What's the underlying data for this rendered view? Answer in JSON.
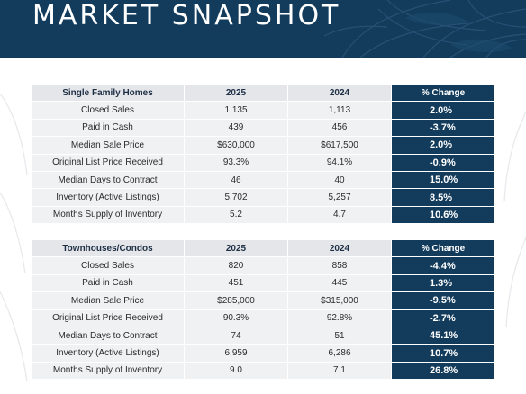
{
  "header": {
    "title": "MARKET SNAPSHOT"
  },
  "tables": [
    {
      "category": "Single Family Homes",
      "col_2025": "2025",
      "col_2024": "2024",
      "col_change": "% Change",
      "rows": [
        {
          "label": "Closed Sales",
          "y2025": "1,135",
          "y2024": "1,113",
          "change": "2.0%"
        },
        {
          "label": "Paid in Cash",
          "y2025": "439",
          "y2024": "456",
          "change": "-3.7%"
        },
        {
          "label": "Median Sale Price",
          "y2025": "$630,000",
          "y2024": "$617,500",
          "change": "2.0%"
        },
        {
          "label": "Original List Price Received",
          "y2025": "93.3%",
          "y2024": "94.1%",
          "change": "-0.9%"
        },
        {
          "label": "Median Days to Contract",
          "y2025": "46",
          "y2024": "40",
          "change": "15.0%"
        },
        {
          "label": "Inventory (Active Listings)",
          "y2025": "5,702",
          "y2024": "5,257",
          "change": "8.5%"
        },
        {
          "label": "Months Supply of Inventory",
          "y2025": "5.2",
          "y2024": "4.7",
          "change": "10.6%"
        }
      ]
    },
    {
      "category": "Townhouses/Condos",
      "col_2025": "2025",
      "col_2024": "2024",
      "col_change": "% Change",
      "rows": [
        {
          "label": "Closed Sales",
          "y2025": "820",
          "y2024": "858",
          "change": "-4.4%"
        },
        {
          "label": "Paid in Cash",
          "y2025": "451",
          "y2024": "445",
          "change": "1.3%"
        },
        {
          "label": "Median Sale Price",
          "y2025": "$285,000",
          "y2024": "$315,000",
          "change": "-9.5%"
        },
        {
          "label": "Original List Price Received",
          "y2025": "90.3%",
          "y2024": "92.8%",
          "change": "-2.7%"
        },
        {
          "label": "Median Days to Contract",
          "y2025": "74",
          "y2024": "51",
          "change": "45.1%"
        },
        {
          "label": "Inventory (Active Listings)",
          "y2025": "6,959",
          "y2024": "6,286",
          "change": "10.7%"
        },
        {
          "label": "Months Supply of Inventory",
          "y2025": "9.0",
          "y2024": "7.1",
          "change": "26.8%"
        }
      ]
    }
  ],
  "colors": {
    "header_bg": "#123b5c",
    "accent": "#123b5c",
    "row_bg": "#f0f1f3",
    "head_bg": "#e4e6ea"
  }
}
